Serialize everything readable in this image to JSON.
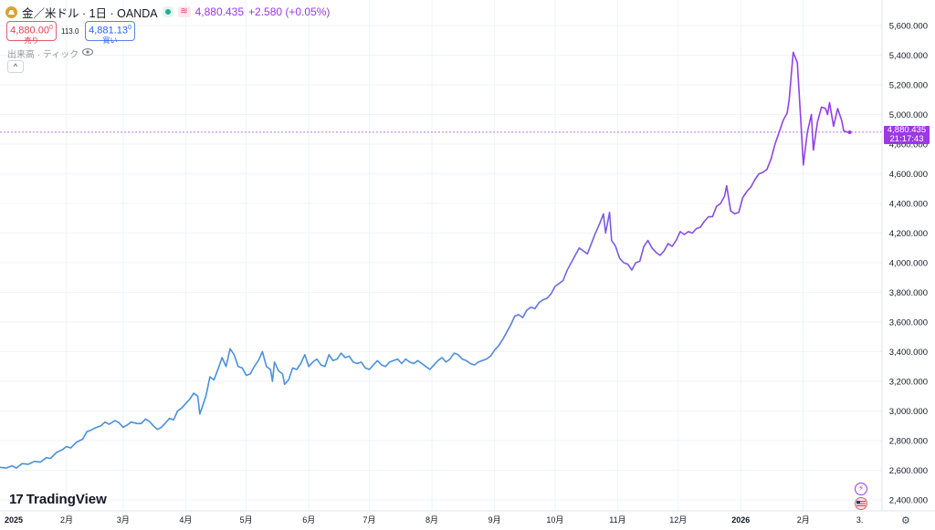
{
  "header": {
    "symbol_title": "金／米ドル · 1日 · OANDA",
    "last_price": "4,880.435",
    "change": "+2.580 (+0.05%)",
    "wave_glyph": "≋"
  },
  "trade": {
    "sell_price": "4,880.00",
    "sell_super": "0",
    "sell_label": "売り",
    "spread": "113.0",
    "buy_price": "4,881.13",
    "buy_super": "0",
    "buy_label": "買い"
  },
  "volume_label": "出来高 · ティック",
  "collapse_glyph": "^",
  "brand": {
    "mark": "17",
    "name": "TradingView"
  },
  "price_label": {
    "price": "4,880.435",
    "countdown": "21:17:43"
  },
  "icons": [
    "gold-logo-icon",
    "market-open-dot-icon",
    "wave-icon",
    "eye-icon",
    "chevron-up-icon",
    "lightning-icon",
    "us-flag-icon",
    "gear-icon"
  ],
  "colors": {
    "line_early": "#4a90d9",
    "line_late": "#9c38e6",
    "price_line": "#9c38e6",
    "grid": "#f0f3fa",
    "axis_text": "#131722"
  },
  "chart_data": {
    "type": "line",
    "title": "",
    "xlabel": "",
    "ylabel": "",
    "ylim": [
      2400,
      5600
    ],
    "y_ticks": [
      "2,400.000",
      "2,600.000",
      "2,800.000",
      "3,000.000",
      "3,200.000",
      "3,400.000",
      "3,600.000",
      "3,800.000",
      "4,000.000",
      "4,200.000",
      "4,400.000",
      "4,600.000",
      "4,800.000",
      "5,000.000",
      "5,200.000",
      "5,400.000",
      "5,600.000"
    ],
    "x_ticks": [
      {
        "label": "2025",
        "t": 0
      },
      {
        "label": "2月",
        "t": 31
      },
      {
        "label": "3月",
        "t": 59
      },
      {
        "label": "4月",
        "t": 90
      },
      {
        "label": "5月",
        "t": 120
      },
      {
        "label": "6月",
        "t": 151
      },
      {
        "label": "7月",
        "t": 181
      },
      {
        "label": "8月",
        "t": 212
      },
      {
        "label": "9月",
        "t": 243
      },
      {
        "label": "10月",
        "t": 273
      },
      {
        "label": "11月",
        "t": 304
      },
      {
        "label": "12月",
        "t": 334
      },
      {
        "label": "2026",
        "t": 365
      },
      {
        "label": "2月",
        "t": 396
      },
      {
        "label": "3.",
        "t": 424
      }
    ],
    "x_range": [
      -2,
      435
    ],
    "current_price": 4880.435,
    "series": [
      {
        "name": "",
        "points": [
          [
            -2,
            2620
          ],
          [
            1,
            2615
          ],
          [
            4,
            2630
          ],
          [
            6,
            2615
          ],
          [
            9,
            2645
          ],
          [
            12,
            2640
          ],
          [
            15,
            2660
          ],
          [
            18,
            2655
          ],
          [
            21,
            2685
          ],
          [
            23,
            2680
          ],
          [
            26,
            2720
          ],
          [
            29,
            2740
          ],
          [
            31,
            2760
          ],
          [
            33,
            2750
          ],
          [
            36,
            2790
          ],
          [
            39,
            2810
          ],
          [
            41,
            2860
          ],
          [
            43,
            2870
          ],
          [
            45,
            2885
          ],
          [
            48,
            2900
          ],
          [
            50,
            2925
          ],
          [
            52,
            2910
          ],
          [
            55,
            2935
          ],
          [
            57,
            2920
          ],
          [
            59,
            2890
          ],
          [
            61,
            2905
          ],
          [
            63,
            2925
          ],
          [
            66,
            2915
          ],
          [
            68,
            2915
          ],
          [
            70,
            2945
          ],
          [
            72,
            2930
          ],
          [
            74,
            2900
          ],
          [
            76,
            2875
          ],
          [
            78,
            2890
          ],
          [
            80,
            2920
          ],
          [
            82,
            2950
          ],
          [
            84,
            2940
          ],
          [
            86,
            3000
          ],
          [
            88,
            3020
          ],
          [
            90,
            3050
          ],
          [
            92,
            3080
          ],
          [
            94,
            3120
          ],
          [
            96,
            3100
          ],
          [
            97,
            2980
          ],
          [
            98,
            3020
          ],
          [
            100,
            3100
          ],
          [
            102,
            3230
          ],
          [
            104,
            3210
          ],
          [
            106,
            3280
          ],
          [
            108,
            3360
          ],
          [
            110,
            3300
          ],
          [
            112,
            3420
          ],
          [
            114,
            3380
          ],
          [
            116,
            3300
          ],
          [
            118,
            3290
          ],
          [
            120,
            3240
          ],
          [
            122,
            3250
          ],
          [
            124,
            3300
          ],
          [
            126,
            3340
          ],
          [
            128,
            3400
          ],
          [
            130,
            3300
          ],
          [
            132,
            3280
          ],
          [
            133,
            3200
          ],
          [
            134,
            3330
          ],
          [
            136,
            3270
          ],
          [
            138,
            3250
          ],
          [
            139,
            3180
          ],
          [
            141,
            3210
          ],
          [
            143,
            3290
          ],
          [
            145,
            3280
          ],
          [
            147,
            3320
          ],
          [
            149,
            3380
          ],
          [
            151,
            3300
          ],
          [
            153,
            3330
          ],
          [
            155,
            3350
          ],
          [
            157,
            3310
          ],
          [
            159,
            3300
          ],
          [
            161,
            3380
          ],
          [
            163,
            3340
          ],
          [
            165,
            3350
          ],
          [
            167,
            3390
          ],
          [
            169,
            3360
          ],
          [
            171,
            3370
          ],
          [
            173,
            3330
          ],
          [
            175,
            3320
          ],
          [
            177,
            3330
          ],
          [
            179,
            3290
          ],
          [
            181,
            3280
          ],
          [
            183,
            3310
          ],
          [
            185,
            3340
          ],
          [
            187,
            3310
          ],
          [
            189,
            3300
          ],
          [
            191,
            3330
          ],
          [
            193,
            3340
          ],
          [
            195,
            3350
          ],
          [
            197,
            3320
          ],
          [
            199,
            3350
          ],
          [
            201,
            3330
          ],
          [
            203,
            3320
          ],
          [
            205,
            3340
          ],
          [
            207,
            3320
          ],
          [
            209,
            3300
          ],
          [
            211,
            3280
          ],
          [
            213,
            3310
          ],
          [
            215,
            3340
          ],
          [
            217,
            3360
          ],
          [
            219,
            3330
          ],
          [
            221,
            3350
          ],
          [
            223,
            3390
          ],
          [
            225,
            3380
          ],
          [
            227,
            3350
          ],
          [
            229,
            3340
          ],
          [
            231,
            3320
          ],
          [
            233,
            3310
          ],
          [
            235,
            3330
          ],
          [
            237,
            3340
          ],
          [
            239,
            3350
          ],
          [
            241,
            3370
          ],
          [
            243,
            3410
          ],
          [
            245,
            3440
          ],
          [
            247,
            3480
          ],
          [
            249,
            3530
          ],
          [
            251,
            3580
          ],
          [
            253,
            3640
          ],
          [
            255,
            3650
          ],
          [
            257,
            3630
          ],
          [
            259,
            3680
          ],
          [
            261,
            3700
          ],
          [
            263,
            3690
          ],
          [
            265,
            3730
          ],
          [
            267,
            3750
          ],
          [
            269,
            3760
          ],
          [
            271,
            3790
          ],
          [
            273,
            3840
          ],
          [
            275,
            3860
          ],
          [
            277,
            3880
          ],
          [
            279,
            3950
          ],
          [
            281,
            4000
          ],
          [
            283,
            4050
          ],
          [
            285,
            4100
          ],
          [
            287,
            4080
          ],
          [
            289,
            4060
          ],
          [
            291,
            4130
          ],
          [
            293,
            4200
          ],
          [
            295,
            4260
          ],
          [
            297,
            4330
          ],
          [
            298,
            4200
          ],
          [
            300,
            4340
          ],
          [
            301,
            4150
          ],
          [
            303,
            4110
          ],
          [
            305,
            4030
          ],
          [
            307,
            4000
          ],
          [
            309,
            3990
          ],
          [
            311,
            3950
          ],
          [
            313,
            4000
          ],
          [
            315,
            4010
          ],
          [
            317,
            4110
          ],
          [
            319,
            4150
          ],
          [
            321,
            4100
          ],
          [
            323,
            4070
          ],
          [
            325,
            4050
          ],
          [
            327,
            4080
          ],
          [
            329,
            4130
          ],
          [
            331,
            4110
          ],
          [
            333,
            4150
          ],
          [
            335,
            4210
          ],
          [
            337,
            4190
          ],
          [
            339,
            4210
          ],
          [
            341,
            4200
          ],
          [
            343,
            4230
          ],
          [
            345,
            4240
          ],
          [
            347,
            4280
          ],
          [
            349,
            4310
          ],
          [
            351,
            4310
          ],
          [
            353,
            4380
          ],
          [
            355,
            4400
          ],
          [
            357,
            4450
          ],
          [
            358,
            4520
          ],
          [
            360,
            4350
          ],
          [
            362,
            4330
          ],
          [
            364,
            4340
          ],
          [
            366,
            4440
          ],
          [
            368,
            4480
          ],
          [
            370,
            4510
          ],
          [
            372,
            4560
          ],
          [
            374,
            4600
          ],
          [
            376,
            4610
          ],
          [
            378,
            4630
          ],
          [
            380,
            4700
          ],
          [
            382,
            4800
          ],
          [
            384,
            4880
          ],
          [
            386,
            4960
          ],
          [
            388,
            5010
          ],
          [
            389,
            5100
          ],
          [
            391,
            5420
          ],
          [
            393,
            5350
          ],
          [
            395,
            4900
          ],
          [
            396,
            4660
          ],
          [
            398,
            4880
          ],
          [
            400,
            5000
          ],
          [
            401,
            4760
          ],
          [
            403,
            4950
          ],
          [
            405,
            5050
          ],
          [
            407,
            5040
          ],
          [
            408,
            5000
          ],
          [
            409,
            5080
          ],
          [
            411,
            4920
          ],
          [
            413,
            5040
          ],
          [
            415,
            4960
          ],
          [
            416,
            4890
          ],
          [
            418,
            4880
          ],
          [
            419,
            4880
          ]
        ]
      }
    ]
  }
}
